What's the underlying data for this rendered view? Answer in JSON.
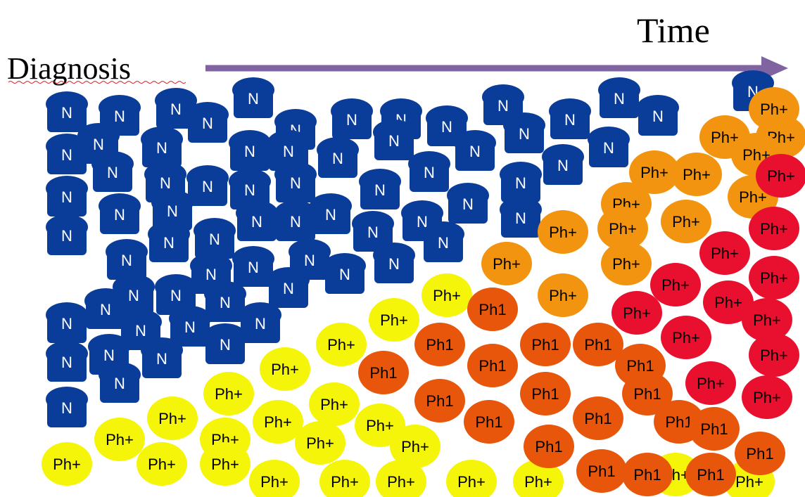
{
  "header": {
    "start_label": "Diagnosis",
    "end_label": "Time"
  },
  "cell_labels": {
    "normal": "N",
    "ph_positive": "Ph+",
    "ph1": "Ph1"
  }
}
